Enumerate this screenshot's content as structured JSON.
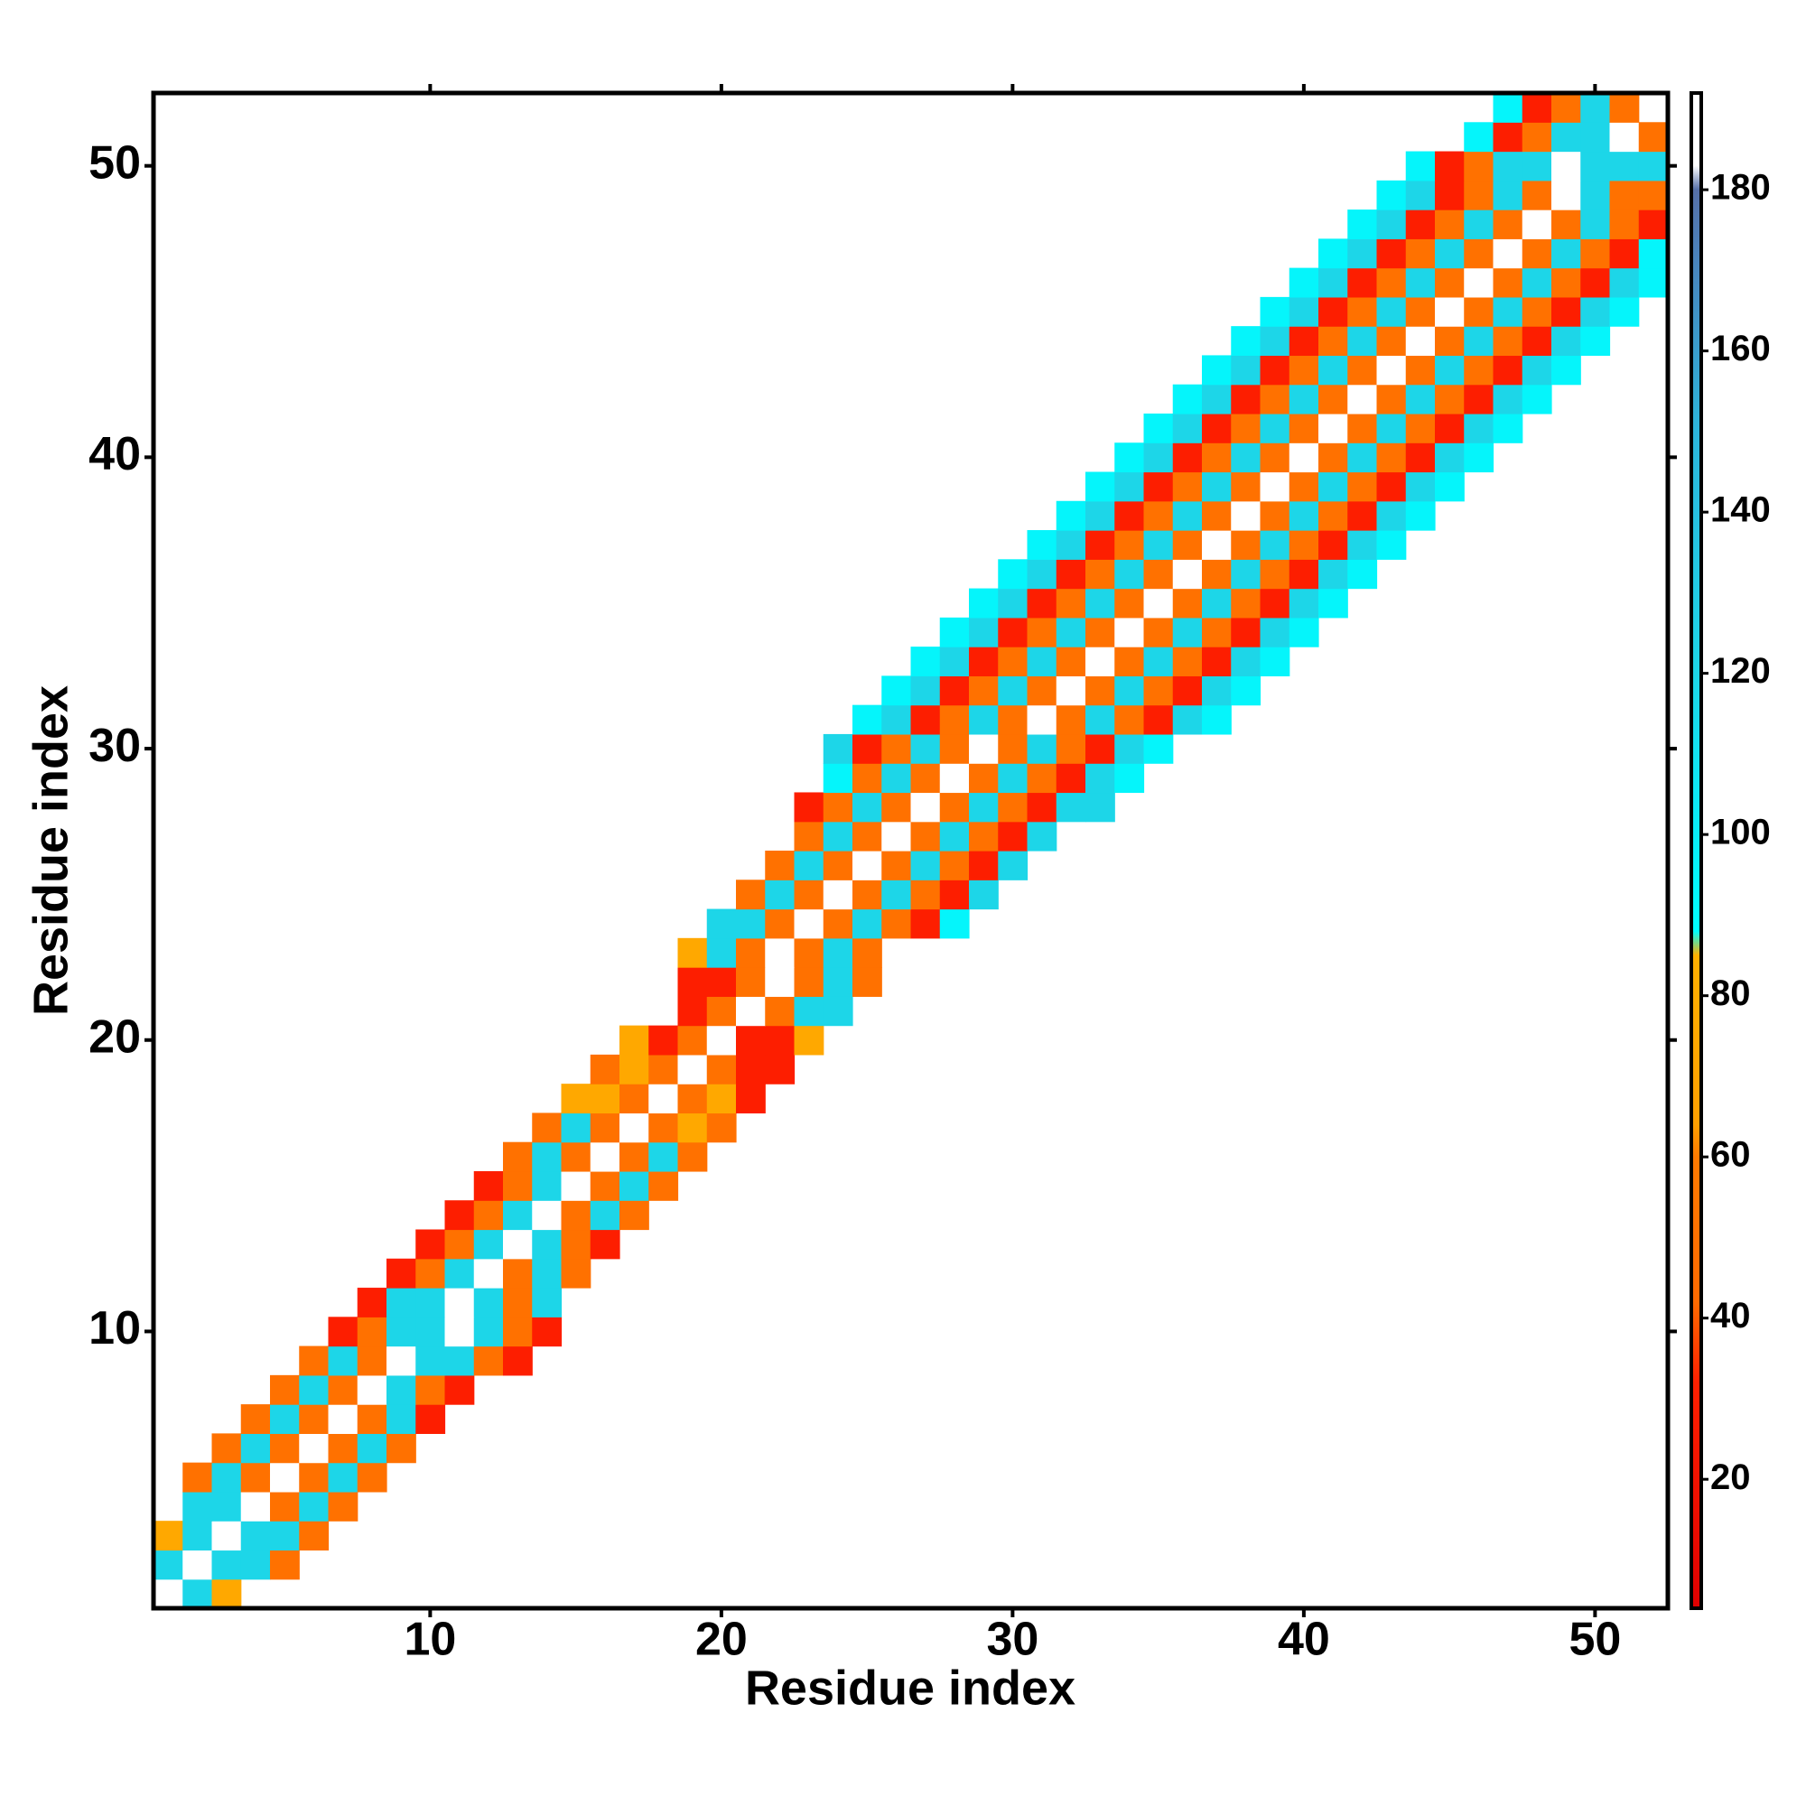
{
  "chart_data": {
    "type": "heatmap",
    "xlabel": "Residue index",
    "ylabel": "Residue index",
    "xlim": [
      0.5,
      52.5
    ],
    "ylim": [
      0.5,
      52.5
    ],
    "xticks": [
      10,
      20,
      30,
      40,
      50
    ],
    "yticks": [
      10,
      20,
      30,
      40,
      50
    ],
    "clim": [
      4,
      192
    ],
    "cticks": [
      20,
      40,
      60,
      80,
      100,
      120,
      140,
      160,
      180
    ],
    "colorscale": [
      {
        "value": 4,
        "color": "#e00000"
      },
      {
        "value": 32,
        "color": "#ff2000"
      },
      {
        "value": 42,
        "color": "#ff6a00"
      },
      {
        "value": 60,
        "color": "#ff7a00"
      },
      {
        "value": 64,
        "color": "#ffa000"
      },
      {
        "value": 85,
        "color": "#ffb000"
      },
      {
        "value": 88,
        "color": "#00ffff"
      },
      {
        "value": 100,
        "color": "#08eef8"
      },
      {
        "value": 120,
        "color": "#1dd6e8"
      },
      {
        "value": 150,
        "color": "#2cb6dc"
      },
      {
        "value": 172,
        "color": "#4a82bc"
      },
      {
        "value": 180,
        "color": "#5670a8"
      },
      {
        "value": 183,
        "color": "#ffffff"
      },
      {
        "value": 192,
        "color": "#ffffff"
      }
    ],
    "rows": [
      {
        "y": 1,
        "x_start": 1,
        "values": [
          185,
          120,
          75
        ]
      },
      {
        "y": 2,
        "x_start": 1,
        "values": [
          120,
          185,
          120,
          120,
          50
        ]
      },
      {
        "y": 3,
        "x_start": 1,
        "values": [
          75,
          120,
          185,
          120,
          120,
          50
        ]
      },
      {
        "y": 4,
        "x_start": 2,
        "values": [
          120,
          120,
          185,
          50,
          120,
          50
        ]
      },
      {
        "y": 5,
        "x_start": 2,
        "values": [
          50,
          120,
          50,
          185,
          50,
          120,
          50
        ]
      },
      {
        "y": 6,
        "x_start": 3,
        "values": [
          50,
          120,
          50,
          185,
          50,
          120,
          50
        ]
      },
      {
        "y": 7,
        "x_start": 4,
        "values": [
          50,
          120,
          50,
          185,
          50,
          120,
          30
        ]
      },
      {
        "y": 8,
        "x_start": 5,
        "values": [
          50,
          120,
          50,
          185,
          120,
          50,
          30
        ]
      },
      {
        "y": 9,
        "x_start": 6,
        "values": [
          50,
          120,
          50,
          185,
          120,
          120,
          50,
          30
        ]
      },
      {
        "y": 10,
        "x_start": 7,
        "values": [
          30,
          50,
          120,
          120,
          185,
          120,
          50,
          30
        ]
      },
      {
        "y": 11,
        "x_start": 8,
        "values": [
          30,
          120,
          120,
          185,
          120,
          50,
          120
        ]
      },
      {
        "y": 12,
        "x_start": 9,
        "values": [
          30,
          50,
          120,
          185,
          50,
          120,
          50
        ]
      },
      {
        "y": 13,
        "x_start": 10,
        "values": [
          30,
          50,
          120,
          185,
          120,
          50,
          30
        ]
      },
      {
        "y": 14,
        "x_start": 11,
        "values": [
          30,
          50,
          120,
          185,
          50,
          120,
          50
        ]
      },
      {
        "y": 15,
        "x_start": 12,
        "values": [
          30,
          50,
          120,
          185,
          50,
          120,
          50
        ]
      },
      {
        "y": 16,
        "x_start": 13,
        "values": [
          50,
          120,
          50,
          185,
          50,
          120,
          50
        ]
      },
      {
        "y": 17,
        "x_start": 14,
        "values": [
          50,
          120,
          50,
          185,
          50,
          75,
          50
        ]
      },
      {
        "y": 18,
        "x_start": 15,
        "values": [
          75,
          75,
          50,
          185,
          50,
          75,
          30
        ]
      },
      {
        "y": 19,
        "x_start": 16,
        "values": [
          50,
          75,
          50,
          185,
          50,
          30,
          30
        ]
      },
      {
        "y": 20,
        "x_start": 17,
        "values": [
          75,
          30,
          50,
          185,
          30,
          30,
          75
        ]
      },
      {
        "y": 21,
        "x_start": 19,
        "values": [
          30,
          50,
          185,
          50,
          120,
          120
        ]
      },
      {
        "y": 22,
        "x_start": 19,
        "values": [
          30,
          30,
          50,
          185,
          50,
          120,
          50
        ]
      },
      {
        "y": 23,
        "x_start": 19,
        "values": [
          75,
          120,
          50,
          185,
          50,
          120,
          50
        ]
      },
      {
        "y": 24,
        "x_start": 20,
        "values": [
          120,
          120,
          50,
          185,
          50,
          120,
          50,
          30,
          95
        ]
      },
      {
        "y": 25,
        "x_start": 21,
        "values": [
          50,
          120,
          50,
          185,
          50,
          120,
          50,
          30,
          120
        ]
      },
      {
        "y": 26,
        "x_start": 22,
        "values": [
          50,
          120,
          50,
          185,
          50,
          120,
          50,
          30,
          120
        ]
      },
      {
        "y": 27,
        "x_start": 23,
        "values": [
          50,
          120,
          50,
          185,
          50,
          120,
          50,
          30,
          120
        ]
      },
      {
        "y": 28,
        "x_start": 23,
        "values": [
          30,
          50,
          120,
          50,
          185,
          50,
          120,
          50,
          30,
          120,
          120
        ]
      },
      {
        "y": 29,
        "x_start": 24,
        "values": [
          95,
          50,
          120,
          50,
          185,
          50,
          120,
          50,
          30,
          120,
          95
        ]
      },
      {
        "y": 30,
        "x_start": 24,
        "values": [
          120,
          30,
          50,
          120,
          50,
          185,
          50,
          120,
          50,
          30,
          120,
          95
        ]
      },
      {
        "y": 31,
        "x_start": 25,
        "values": [
          95,
          120,
          30,
          50,
          120,
          50,
          185,
          50,
          120,
          50,
          30,
          120,
          95
        ]
      },
      {
        "y": 32,
        "x_start": 26,
        "values": [
          95,
          120,
          30,
          50,
          120,
          50,
          185,
          50,
          120,
          50,
          30,
          120,
          95
        ]
      },
      {
        "y": 33,
        "x_start": 27,
        "values": [
          95,
          120,
          30,
          50,
          120,
          50,
          185,
          50,
          120,
          50,
          30,
          120,
          95
        ]
      },
      {
        "y": 34,
        "x_start": 28,
        "values": [
          95,
          120,
          30,
          50,
          120,
          50,
          185,
          50,
          120,
          50,
          30,
          120,
          95
        ]
      },
      {
        "y": 35,
        "x_start": 29,
        "values": [
          95,
          120,
          30,
          50,
          120,
          50,
          185,
          50,
          120,
          50,
          30,
          120,
          95
        ]
      },
      {
        "y": 36,
        "x_start": 30,
        "values": [
          95,
          120,
          30,
          50,
          120,
          50,
          185,
          50,
          120,
          50,
          30,
          120,
          95
        ]
      },
      {
        "y": 37,
        "x_start": 31,
        "values": [
          95,
          120,
          30,
          50,
          120,
          50,
          185,
          50,
          120,
          50,
          30,
          120,
          95
        ]
      },
      {
        "y": 38,
        "x_start": 32,
        "values": [
          95,
          120,
          30,
          50,
          120,
          50,
          185,
          50,
          120,
          50,
          30,
          120,
          95
        ]
      },
      {
        "y": 39,
        "x_start": 33,
        "values": [
          95,
          120,
          30,
          50,
          120,
          50,
          185,
          50,
          120,
          50,
          30,
          120,
          95
        ]
      },
      {
        "y": 40,
        "x_start": 34,
        "values": [
          95,
          120,
          30,
          50,
          120,
          50,
          185,
          50,
          120,
          50,
          30,
          120,
          95
        ]
      },
      {
        "y": 41,
        "x_start": 35,
        "values": [
          95,
          120,
          30,
          50,
          120,
          50,
          185,
          50,
          120,
          50,
          30,
          120,
          95
        ]
      },
      {
        "y": 42,
        "x_start": 36,
        "values": [
          95,
          120,
          30,
          50,
          120,
          50,
          185,
          50,
          120,
          50,
          30,
          120,
          95
        ]
      },
      {
        "y": 43,
        "x_start": 37,
        "values": [
          95,
          120,
          30,
          50,
          120,
          50,
          185,
          50,
          120,
          50,
          30,
          120,
          95
        ]
      },
      {
        "y": 44,
        "x_start": 38,
        "values": [
          95,
          120,
          30,
          50,
          120,
          50,
          185,
          50,
          120,
          50,
          30,
          120,
          95
        ]
      },
      {
        "y": 45,
        "x_start": 39,
        "values": [
          95,
          120,
          30,
          50,
          120,
          50,
          185,
          50,
          120,
          50,
          30,
          120,
          95
        ]
      },
      {
        "y": 46,
        "x_start": 40,
        "values": [
          95,
          120,
          30,
          50,
          120,
          50,
          185,
          50,
          120,
          50,
          30,
          120,
          95
        ]
      },
      {
        "y": 47,
        "x_start": 41,
        "values": [
          95,
          120,
          30,
          50,
          120,
          50,
          185,
          50,
          120,
          50,
          30,
          95
        ]
      },
      {
        "y": 48,
        "x_start": 42,
        "values": [
          95,
          120,
          30,
          50,
          120,
          50,
          185,
          50,
          120,
          50,
          30
        ]
      },
      {
        "y": 49,
        "x_start": 43,
        "values": [
          95,
          120,
          30,
          50,
          120,
          50,
          185,
          120,
          50,
          50
        ]
      },
      {
        "y": 50,
        "x_start": 44,
        "values": [
          95,
          30,
          50,
          120,
          120,
          185,
          120,
          120,
          120
        ]
      },
      {
        "y": 51,
        "x_start": 46,
        "values": [
          95,
          30,
          50,
          120,
          120,
          185,
          50
        ]
      },
      {
        "y": 52,
        "x_start": 47,
        "values": [
          95,
          30,
          50,
          120,
          50
        ]
      }
    ]
  }
}
